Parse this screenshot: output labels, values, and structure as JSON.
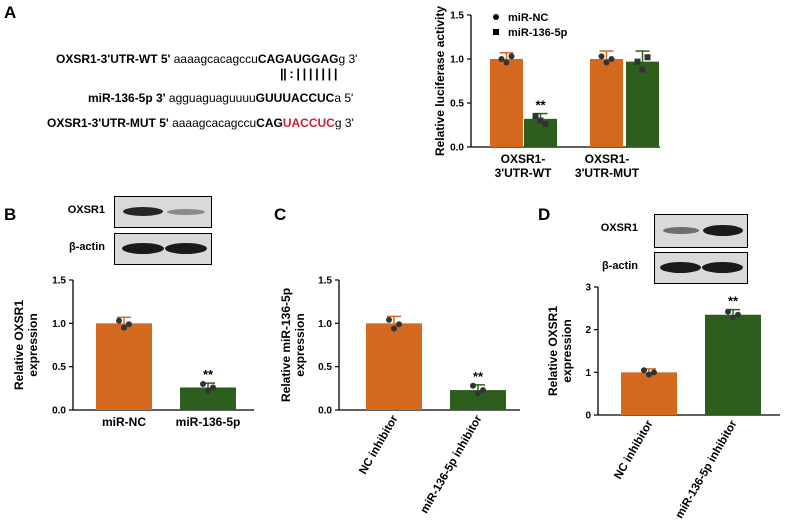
{
  "panels": {
    "a": "A",
    "b": "B",
    "c": "C",
    "d": "D"
  },
  "sequences": {
    "wt": {
      "name": "OXSR1-3'UTR-WT",
      "prime5": "5'",
      "lower": "aaaagcacagccu",
      "upper": "CAGAUGGAG",
      "tail": "g 3'"
    },
    "pairing": "|| : | | | | | | |",
    "mir": {
      "name": "miR-136-5p",
      "prime3": "3'",
      "lower": "agguaguaguuuu",
      "upper": "GUUUACCUC",
      "tail": "a 5'"
    },
    "mut": {
      "name": "OXSR1-3'UTR-MUT",
      "prime5": "5'",
      "lower": "aaaagcacagccu",
      "upper_black": "CAG",
      "upper_red": "UACCUC",
      "tail": "g 3'"
    }
  },
  "blots": {
    "b": {
      "labels": [
        "OXSR1",
        "β-actin"
      ]
    },
    "d": {
      "labels": [
        "OXSR1",
        "β-actin"
      ]
    }
  },
  "colors": {
    "nc": "#d2691e",
    "treat": "#2e5e1e",
    "point": "#333333"
  },
  "chart_data": [
    {
      "panel": "A",
      "type": "bar",
      "categories": [
        "OXSR1-\n3'UTR-WT",
        "OXSR1-\n3'UTR-MUT"
      ],
      "ylabel": "Relative luciferase activity",
      "ylim": [
        0,
        1.5
      ],
      "yticks": [
        "0.0",
        "0.5",
        "1.0",
        "1.5"
      ],
      "legend": "top-right",
      "series": [
        {
          "name": "miR-NC",
          "values": [
            1.0,
            1.0
          ],
          "errors": [
            0.07,
            0.09
          ],
          "points": [
            [
              1.0,
              0.96,
              1.03
            ],
            [
              1.03,
              0.96,
              1.0
            ]
          ]
        },
        {
          "name": "miR-136-5p",
          "values": [
            0.32,
            0.97
          ],
          "errors": [
            0.06,
            0.12
          ],
          "points": [
            [
              0.35,
              0.3,
              0.26
            ],
            [
              0.97,
              0.88,
              1.02
            ]
          ]
        }
      ],
      "annotations": [
        {
          "series": 1,
          "category": 0,
          "text": "**"
        }
      ]
    },
    {
      "panel": "B",
      "type": "bar",
      "categories": [
        "miR-NC",
        "miR-136-5p"
      ],
      "ylabel": "Relative OXSR1\nexpression",
      "ylim": [
        0,
        1.5
      ],
      "yticks": [
        "0.0",
        "0.5",
        "1.0",
        "1.5"
      ],
      "values": [
        1.0,
        0.26
      ],
      "errors": [
        0.07,
        0.05
      ],
      "points": [
        [
          1.03,
          0.95,
          0.99
        ],
        [
          0.3,
          0.22,
          0.26
        ]
      ],
      "annotations": [
        {
          "category": 1,
          "text": "**"
        }
      ]
    },
    {
      "panel": "C",
      "type": "bar",
      "categories": [
        "NC inhibitor",
        "miR-136-5p inhibitor"
      ],
      "ylabel": "Relative miR-136-5p\nexpression",
      "ylim": [
        0,
        1.5
      ],
      "yticks": [
        "0.0",
        "0.5",
        "1.0",
        "1.5"
      ],
      "values": [
        1.0,
        0.23
      ],
      "errors": [
        0.08,
        0.06
      ],
      "points": [
        [
          1.04,
          0.94,
          0.99
        ],
        [
          0.28,
          0.19,
          0.23
        ]
      ],
      "annotations": [
        {
          "category": 1,
          "text": "**"
        }
      ]
    },
    {
      "panel": "D",
      "type": "bar",
      "categories": [
        "NC inhibitor",
        "miR-136-5p inhibitor"
      ],
      "ylabel": "Relative OXSR1\nexpression",
      "ylim": [
        0,
        3
      ],
      "yticks": [
        "0",
        "1",
        "2",
        "3"
      ],
      "values": [
        1.0,
        2.35
      ],
      "errors": [
        0.08,
        0.12
      ],
      "points": [
        [
          1.05,
          0.95,
          1.0
        ],
        [
          2.42,
          2.28,
          2.35
        ]
      ],
      "annotations": [
        {
          "category": 1,
          "text": "**"
        }
      ]
    }
  ]
}
